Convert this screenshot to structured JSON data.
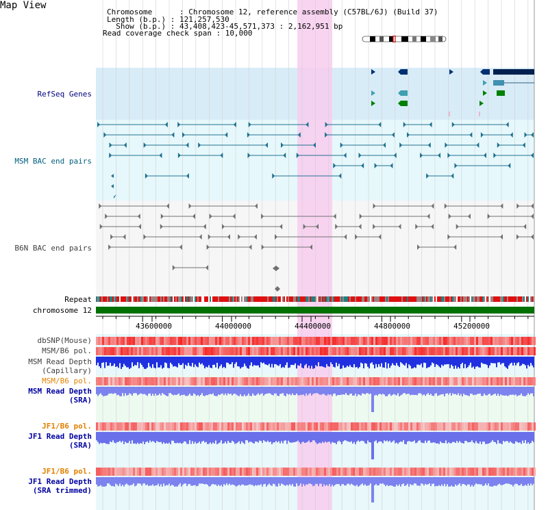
{
  "title": "Map View",
  "info": {
    "chromosome": "Chromosome      : Chromosome 12, reference assembly (C57BL/6J) (Build 37)",
    "length": "Length (b.p.) : 121,257,530",
    "show": "  Show (b.p.) : 43,408,423-45,571,373 : 2,162,951 bp",
    "coverage": "Read coverage check span : 10,000"
  },
  "tracks": {
    "refseq": "RefSeq Genes",
    "msm_bac": "MSM BAC end pairs",
    "b6n_bac": "B6N BAC end pairs",
    "repeat": "Repeat",
    "chromosome": "chromosome 12",
    "dbsnp": "dbSNP(Mouse)",
    "msm_b6_pol": "MSM/B6 pol.",
    "msm_depth_cap": "MSM Read Depth",
    "msm_depth_cap2": "(Capillary)",
    "msm_b6_pol2": "MSM/B6 pol.",
    "msm_depth_sra": "MSM Read Depth",
    "msm_depth_sra2": "(SRA)",
    "jf1_b6_pol": "JF1/B6 pol.",
    "jf1_depth": "JF1 Read Depth",
    "jf1_depth2": "(SRA)",
    "jf1_b6_pol2": "JF1/B6 pol.",
    "jf1_depth_t": "JF1 Read Depth",
    "jf1_depth_t2": "(SRA trimmed)"
  },
  "axis_ticks": [
    "43600000",
    "44000000",
    "44400000",
    "44800000",
    "45200000"
  ],
  "colors": {
    "refseq_label": "#000080",
    "msm_label": "#006080",
    "b6n_label": "#404040",
    "pol_orange": "#e08000",
    "depth_blue": "#0000a0",
    "highlight": "#f8c8ec"
  }
}
